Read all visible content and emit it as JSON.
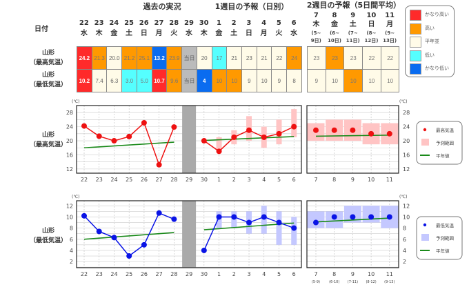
{
  "header": {
    "past_title": "過去の実況",
    "week1_title": "1週目の予報（日別）",
    "week2_title": "2週目の予報（5日間平均）",
    "date_label": "日付",
    "today_label": "当日"
  },
  "rows": {
    "max_label": [
      "山形",
      "（最高気温）"
    ],
    "min_label": [
      "山形",
      "（最低気温）"
    ]
  },
  "colors": {
    "vh": "#ff2a2a",
    "h": "#ff9900",
    "n": "#fffbe8",
    "l": "#55ffff",
    "vl": "#0a6cf0",
    "today": "#bbbbbb"
  },
  "legend": [
    {
      "key": "vh",
      "label": "かなり高い"
    },
    {
      "key": "h",
      "label": "高い"
    },
    {
      "key": "n",
      "label": "平年並"
    },
    {
      "key": "l",
      "label": "低い"
    },
    {
      "key": "vl",
      "label": "かなり低い"
    }
  ],
  "days": [
    {
      "d": "22",
      "w": "水",
      "max": "24.2",
      "maxc": "vh",
      "min": "10.2",
      "minc": "vh"
    },
    {
      "d": "23",
      "w": "木",
      "max": "21.3",
      "maxc": "h",
      "min": "7.4",
      "minc": "n"
    },
    {
      "d": "24",
      "w": "金",
      "max": "20.0",
      "maxc": "n",
      "min": "6.3",
      "minc": "n"
    },
    {
      "d": "25",
      "w": "土",
      "max": "21.2",
      "maxc": "h",
      "min": "3.0",
      "minc": "l"
    },
    {
      "d": "26",
      "w": "日",
      "max": "25.1",
      "maxc": "h",
      "min": "5.0",
      "minc": "l"
    },
    {
      "d": "27",
      "w": "月",
      "max": "13.2",
      "maxc": "vl",
      "min": "10.7",
      "minc": "vh"
    },
    {
      "d": "28",
      "w": "火",
      "max": "23.9",
      "maxc": "h",
      "min": "9.6",
      "minc": "h"
    },
    {
      "d": "29",
      "w": "水",
      "max": "当日",
      "maxc": "today",
      "min": "当日",
      "minc": "today"
    },
    {
      "d": "30",
      "w": "木",
      "max": "20",
      "maxc": "n",
      "min": "4",
      "minc": "vl"
    },
    {
      "d": "1",
      "w": "金",
      "max": "17",
      "maxc": "l",
      "min": "10",
      "minc": "h"
    },
    {
      "d": "2",
      "w": "土",
      "max": "21",
      "maxc": "n",
      "min": "10",
      "minc": "h"
    },
    {
      "d": "3",
      "w": "日",
      "max": "23",
      "maxc": "n",
      "min": "9",
      "minc": "n"
    },
    {
      "d": "4",
      "w": "月",
      "max": "21",
      "maxc": "n",
      "min": "10",
      "minc": "n"
    },
    {
      "d": "5",
      "w": "火",
      "max": "22",
      "maxc": "n",
      "min": "9",
      "minc": "n"
    },
    {
      "d": "6",
      "w": "水",
      "max": "24",
      "maxc": "h",
      "min": "8",
      "minc": "n"
    }
  ],
  "week2": [
    {
      "d": "7",
      "w": "木",
      "r1": "(5~",
      "r2": "9日)",
      "sub": "(5-9)",
      "max": "23",
      "maxc": "n",
      "min": "9",
      "minc": "n"
    },
    {
      "d": "8",
      "w": "金",
      "r1": "(6~",
      "r2": "10日)",
      "sub": "(6-10)",
      "max": "23",
      "maxc": "h",
      "min": "10",
      "minc": "n"
    },
    {
      "d": "9",
      "w": "土",
      "r1": "(7~",
      "r2": "11日)",
      "sub": "(7-11)",
      "max": "23",
      "maxc": "n",
      "min": "10",
      "minc": "h"
    },
    {
      "d": "10",
      "w": "日",
      "r1": "(8~",
      "r2": "12日)",
      "sub": "(8-12)",
      "max": "22",
      "maxc": "n",
      "min": "10",
      "minc": "n"
    },
    {
      "d": "11",
      "w": "月",
      "r1": "(9~",
      "r2": "13日)",
      "sub": "(9-13)",
      "max": "22",
      "maxc": "n",
      "min": "10",
      "minc": "n"
    }
  ],
  "chart_data": [
    {
      "type": "line",
      "title": "山形（最高気温）",
      "ylabel": "(℃)",
      "ylim": [
        10.8,
        30
      ],
      "yticks": [
        12,
        16,
        20,
        24,
        28
      ],
      "categories": [
        "22",
        "23",
        "24",
        "25",
        "26",
        "27",
        "28",
        "29",
        "30",
        "1",
        "2",
        "3",
        "4",
        "5",
        "6"
      ],
      "observed": [
        24.2,
        21.3,
        20.0,
        21.2,
        25.1,
        13.2,
        23.9,
        null,
        null,
        null,
        null,
        null,
        null,
        null,
        null
      ],
      "forecast": [
        null,
        null,
        null,
        null,
        null,
        null,
        null,
        null,
        20,
        17,
        21,
        23,
        21,
        22,
        24
      ],
      "range": [
        null,
        null,
        null,
        null,
        null,
        null,
        null,
        null,
        null,
        [
          17,
          21
        ],
        [
          19,
          23
        ],
        [
          20,
          27
        ],
        [
          18,
          24
        ],
        [
          19,
          26
        ],
        [
          21,
          29
        ]
      ],
      "normal_past": [
        18.0,
        19.6
      ],
      "normal_week1": [
        20.1,
        21.2
      ],
      "week2": {
        "values": [
          23,
          23,
          23,
          22,
          22
        ],
        "range": [
          [
            20,
            25
          ],
          [
            20,
            26
          ],
          [
            20,
            26
          ],
          [
            19,
            25
          ],
          [
            19,
            25
          ]
        ],
        "normal": [
          21.3,
          21.6
        ]
      },
      "legend": [
        "最高気温",
        "予測範囲",
        "平年値"
      ],
      "color": "#ee1111",
      "range_color": "#ffc4c4"
    },
    {
      "type": "line",
      "title": "山形（最低気温）",
      "ylabel": "(℃)",
      "ylim": [
        0.9,
        12.9
      ],
      "yticks": [
        2,
        4,
        6,
        8,
        10,
        12
      ],
      "categories": [
        "22",
        "23",
        "24",
        "25",
        "26",
        "27",
        "28",
        "29",
        "30",
        "1",
        "2",
        "3",
        "4",
        "5",
        "6"
      ],
      "observed": [
        10.2,
        7.4,
        6.3,
        3.0,
        5.0,
        10.7,
        9.6,
        null,
        null,
        null,
        null,
        null,
        null,
        null,
        null
      ],
      "forecast": [
        null,
        null,
        null,
        null,
        null,
        null,
        null,
        null,
        4,
        10,
        10,
        9,
        10,
        9,
        8
      ],
      "range": [
        null,
        null,
        null,
        null,
        null,
        null,
        null,
        null,
        null,
        [
          8,
          11
        ],
        [
          8,
          11
        ],
        [
          7,
          11
        ],
        [
          7,
          12
        ],
        [
          5,
          11
        ],
        [
          5,
          10
        ]
      ],
      "normal_past": [
        6.0,
        7.2
      ],
      "normal_week1": [
        7.7,
        8.9
      ],
      "week2": {
        "values": [
          9,
          10,
          10,
          10,
          10
        ],
        "range": [
          [
            8,
            11
          ],
          [
            8,
            11
          ],
          [
            9,
            12
          ],
          [
            9,
            12
          ],
          [
            8,
            12
          ]
        ],
        "normal": [
          9.1,
          9.8
        ]
      },
      "legend": [
        "最低気温",
        "予測範囲",
        "平年値"
      ],
      "color": "#0a14e6",
      "range_color": "#c4c8ff"
    }
  ]
}
